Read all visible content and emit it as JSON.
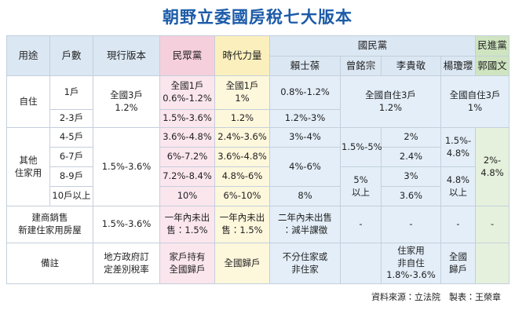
{
  "title": "朝野立委國房稅七大版本",
  "header": {
    "groups": [
      "國民黨",
      "民進黨"
    ],
    "columns": [
      "用途",
      "戶數",
      "現行版本",
      "民眾黨",
      "時代力量",
      "賴士葆",
      "曾銘宗",
      "李貴敬",
      "楊瓊瓔",
      "郭國文"
    ]
  },
  "rows": [
    [
      "自住",
      "1戶",
      "全國3戶\n1.2%",
      "全國1戶\n0.6%-1.2%",
      "全國1戶\n1%",
      "0.8%-1.2%",
      "全國自住3戶\n1.2%",
      "全國自住3戶\n1%"
    ],
    [
      "2-3戶",
      "1.5%-3.6%",
      "1.2%",
      "1.2%-3%"
    ],
    [
      "其他\n住家用",
      "4-5戶",
      "1.5%-3.6%",
      "3.6%-4.8%",
      "2.4%-3.6%",
      "3%-4%",
      "1.5%-5%",
      "2%",
      "1.5%-\n4.8%",
      "2%-\n4.8%"
    ],
    [
      "6-7戶",
      "6%-7.2%",
      "3.6%-4.8%",
      "4%-6%",
      "2.4%"
    ],
    [
      "8-9戶",
      "7.2%-8.4%",
      "4.8%-6%",
      "5%\n以上",
      "3%",
      "4.8%\n以上"
    ],
    [
      "10戶以上",
      "10%",
      "6%-10%",
      "8%",
      "3.6%"
    ],
    [
      "建商銷售\n新建住家用房屋",
      "1.5%-3.6%",
      "一年內未出\n售：1.5%",
      "一年內未出\n售：1.5%",
      "二年內未出售\n：減半課徵",
      "-",
      "-",
      "-",
      "-"
    ],
    [
      "備註",
      "地方政府訂\n定差別稅率",
      "家戶持有\n全國歸戶",
      "全國歸戶",
      "不分住家或\n非住家",
      "住家用\n非自住\n1.8%-3.6%",
      "全國\n歸戶"
    ]
  ],
  "source": "資料來源：立法院　製表：王榮章"
}
